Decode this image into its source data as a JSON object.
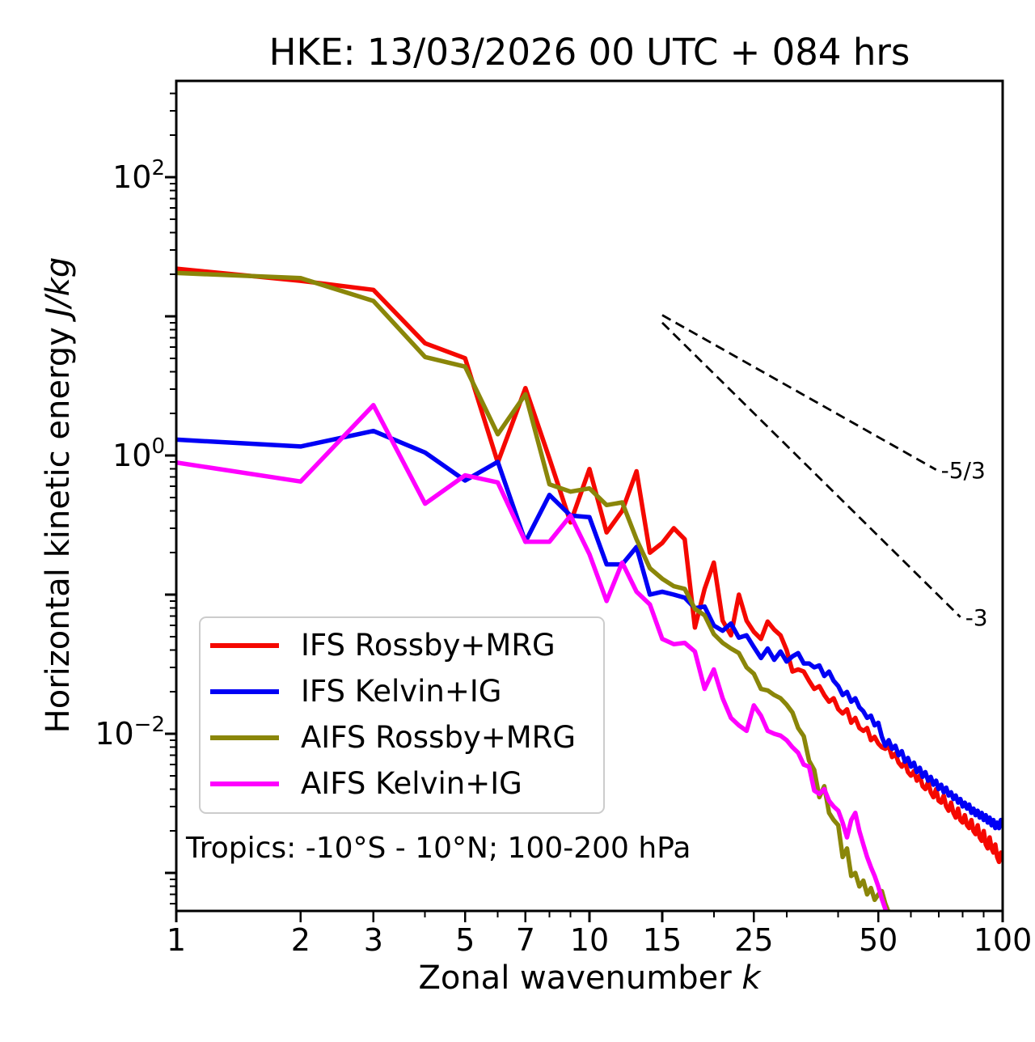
{
  "page": {
    "title": "HKE: 13/03/2026 00 UTC + 084 hrs"
  },
  "chart_data": {
    "type": "line",
    "title": "HKE: 13/03/2026 00 UTC + 084 hrs",
    "xlabel": "Zonal wavenumber",
    "xlabel_symbol": "k",
    "ylabel": "Horizontal kinetic energy",
    "ylabel_units": "J/kg",
    "xscale": "log",
    "yscale": "log",
    "xlim": [
      1,
      100
    ],
    "ylim": [
      0.00053,
      492
    ],
    "grid": false,
    "legend_position": "lower-left",
    "annotation": "Tropics: -10°S - 10°N; 100-200 hPa",
    "x_ticks": {
      "major": [
        1,
        2,
        3,
        5,
        7,
        10,
        15,
        25,
        50,
        100
      ],
      "minor": [
        4,
        6,
        8,
        9,
        20,
        30,
        40,
        60,
        70,
        80,
        90
      ]
    },
    "y_ticks": {
      "major_exponents": [
        2,
        1,
        0,
        -1,
        -2,
        -3
      ],
      "labeled_exponents": [
        2,
        0,
        -2
      ],
      "minor_subs": [
        2,
        3,
        4,
        5,
        6,
        7,
        8,
        9
      ]
    },
    "ref_lines": [
      {
        "label": "-5/3",
        "x1": 15,
        "y1": 10.2,
        "x2": 69,
        "y2": 0.79,
        "style": "dashed",
        "color": "#000000"
      },
      {
        "label": "-3",
        "x1": 15,
        "y1": 9.0,
        "x2": 79,
        "y2": 0.069,
        "style": "dashed",
        "color": "#000000"
      }
    ],
    "series": [
      {
        "name": "IFS Rossby+MRG",
        "color": "#f50800",
        "x_start": 1,
        "x_step": 1,
        "values": [
          22.0,
          18.0,
          15.5,
          6.4,
          5.0,
          0.89,
          3.05,
          0.95,
          0.33,
          0.8,
          0.28,
          0.4,
          0.77,
          0.2,
          0.235,
          0.3,
          0.25,
          0.058,
          0.11,
          0.17,
          0.065,
          0.051,
          0.1,
          0.065,
          0.054,
          0.048,
          0.064,
          0.056,
          0.051,
          0.04,
          0.028,
          0.029,
          0.028,
          0.024,
          0.021,
          0.022,
          0.019,
          0.017,
          0.018,
          0.015,
          0.014,
          0.015,
          0.012,
          0.013,
          0.011,
          0.0105,
          0.011,
          0.009,
          0.0095,
          0.0085,
          0.008,
          0.0078,
          0.0082,
          0.0068,
          0.0072,
          0.0062,
          0.0058,
          0.0063,
          0.0053,
          0.005,
          0.0054,
          0.0046,
          0.005,
          0.0042,
          0.004,
          0.0045,
          0.0038,
          0.0035,
          0.004,
          0.0033,
          0.0032,
          0.0036,
          0.003,
          0.0028,
          0.0032,
          0.0027,
          0.0025,
          0.0029,
          0.0024,
          0.0023,
          0.0026,
          0.0022,
          0.0021,
          0.0024,
          0.002,
          0.0019,
          0.0022,
          0.0018,
          0.0017,
          0.002,
          0.0016,
          0.0015,
          0.0018,
          0.0015,
          0.0014,
          0.0016,
          0.0013,
          0.0012,
          0.0014,
          0.0012
        ]
      },
      {
        "name": "IFS Kelvin+IG",
        "color": "#0000f5",
        "x_start": 1,
        "x_step": 1,
        "values": [
          1.3,
          1.16,
          1.5,
          1.05,
          0.66,
          0.9,
          0.24,
          0.52,
          0.37,
          0.36,
          0.165,
          0.165,
          0.22,
          0.1,
          0.105,
          0.1,
          0.095,
          0.08,
          0.082,
          0.06,
          0.055,
          0.062,
          0.049,
          0.051,
          0.042,
          0.035,
          0.041,
          0.034,
          0.039,
          0.033,
          0.036,
          0.038,
          0.032,
          0.032,
          0.03,
          0.031,
          0.026,
          0.028,
          0.024,
          0.022,
          0.019,
          0.02,
          0.017,
          0.018,
          0.0155,
          0.0145,
          0.013,
          0.0135,
          0.0115,
          0.012,
          0.0095,
          0.0082,
          0.009,
          0.0078,
          0.0082,
          0.007,
          0.0075,
          0.0063,
          0.0067,
          0.0058,
          0.0062,
          0.0053,
          0.0057,
          0.0049,
          0.0053,
          0.0046,
          0.0049,
          0.0043,
          0.0046,
          0.004,
          0.0043,
          0.0038,
          0.0041,
          0.0036,
          0.0038,
          0.0034,
          0.0036,
          0.0032,
          0.0034,
          0.003,
          0.0032,
          0.0029,
          0.0031,
          0.0027,
          0.0029,
          0.0026,
          0.0028,
          0.0025,
          0.0027,
          0.0024,
          0.0026,
          0.0023,
          0.0025,
          0.0022,
          0.0024,
          0.0021,
          0.0023,
          0.0021,
          0.0024,
          0.0022
        ]
      },
      {
        "name": "AIFS Rossby+MRG",
        "color": "#8a8609",
        "x_start": 1,
        "x_step": 1,
        "values": [
          20.5,
          18.8,
          12.9,
          5.1,
          4.35,
          1.42,
          2.75,
          0.62,
          0.55,
          0.58,
          0.44,
          0.46,
          0.25,
          0.155,
          0.13,
          0.115,
          0.11,
          0.079,
          0.071,
          0.052,
          0.045,
          0.041,
          0.038,
          0.03,
          0.027,
          0.021,
          0.0205,
          0.019,
          0.018,
          0.0162,
          0.0142,
          0.011,
          0.0096,
          0.0064,
          0.0055,
          0.0035,
          0.0042,
          0.0027,
          0.0024,
          0.0022,
          0.0013,
          0.0015,
          0.00095,
          0.001,
          0.0008,
          0.00088,
          0.0007,
          0.00078,
          0.00064,
          0.0007,
          0.00074,
          0.0006,
          0.00052,
          0.00042,
          0.00034
        ]
      },
      {
        "name": "AIFS Kelvin+IG",
        "color": "#ff00ff",
        "x_start": 1,
        "x_step": 1,
        "values": [
          0.89,
          0.65,
          2.3,
          0.45,
          0.72,
          0.64,
          0.24,
          0.24,
          0.37,
          0.195,
          0.09,
          0.17,
          0.105,
          0.085,
          0.048,
          0.044,
          0.045,
          0.039,
          0.021,
          0.029,
          0.018,
          0.013,
          0.0115,
          0.0105,
          0.016,
          0.0135,
          0.0105,
          0.01,
          0.0097,
          0.009,
          0.008,
          0.0073,
          0.006,
          0.0058,
          0.0039,
          0.0037,
          0.004,
          0.0033,
          0.003,
          0.0028,
          0.0023,
          0.0018,
          0.0024,
          0.0027,
          0.002,
          0.0016,
          0.0013,
          0.0011,
          0.00095,
          0.0008,
          0.00065,
          0.00055,
          0.00042
        ]
      }
    ]
  }
}
